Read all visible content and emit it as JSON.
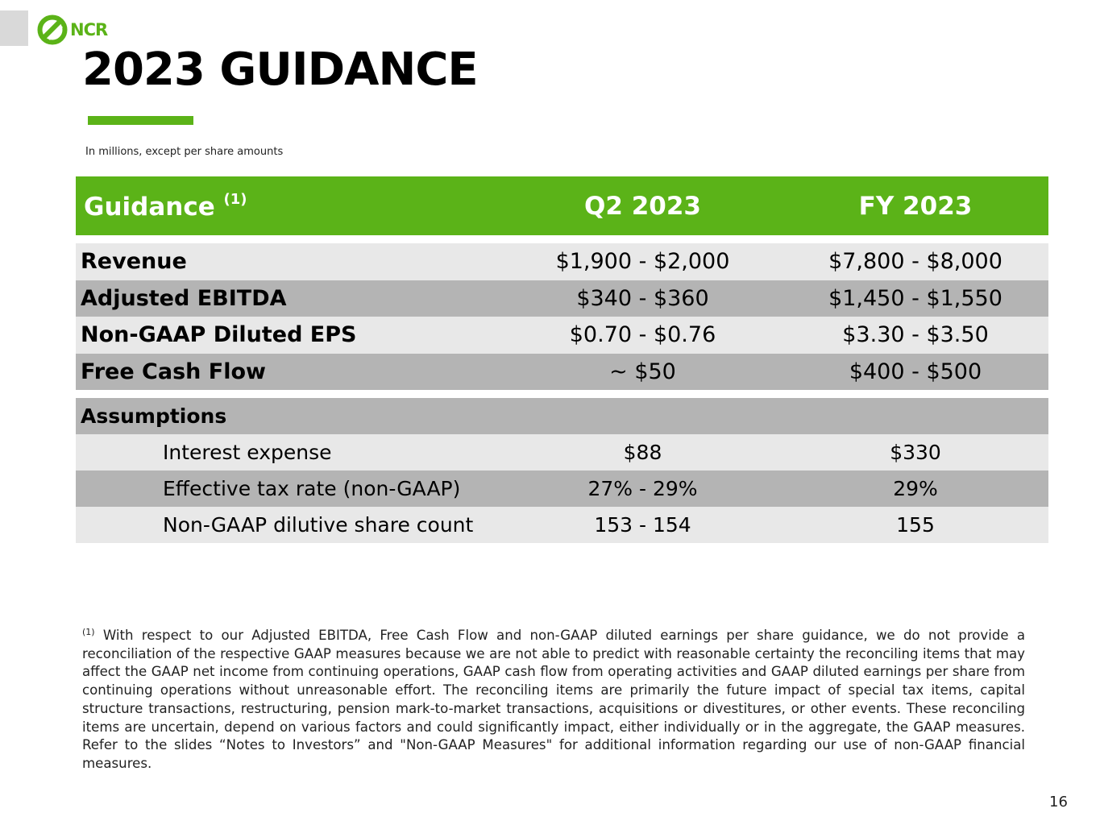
{
  "logo": {
    "text": "NCR",
    "color": "#5bb318"
  },
  "title": "2023 GUIDANCE",
  "units_note": "In millions, except per share amounts",
  "table_header": {
    "label": "Guidance",
    "footnote_marker": "(1)",
    "col_q2": "Q2 2023",
    "col_fy": "FY 2023"
  },
  "guidance_rows": [
    {
      "label": "Revenue",
      "q2": "$1,900 - $2,000",
      "fy": "$7,800 - $8,000"
    },
    {
      "label": "Adjusted EBITDA",
      "q2": "$340 - $360",
      "fy": "$1,450 - $1,550"
    },
    {
      "label": "Non-GAAP Diluted EPS",
      "q2": "$0.70 - $0.76",
      "fy": "$3.30 - $3.50"
    },
    {
      "label": "Free Cash Flow",
      "q2": "~ $50",
      "fy": "$400 - $500"
    }
  ],
  "assumptions": {
    "heading": "Assumptions",
    "rows": [
      {
        "label": "Interest expense",
        "q2": "$88",
        "fy": "$330"
      },
      {
        "label": "Effective tax rate (non-GAAP)",
        "q2": "27% - 29%",
        "fy": "29%"
      },
      {
        "label": "Non-GAAP dilutive share count",
        "q2": "153 - 154",
        "fy": "155"
      }
    ]
  },
  "footnote": {
    "marker": "(1)",
    "text": "With respect to our Adjusted EBITDA, Free Cash Flow and non-GAAP diluted earnings per share guidance, we do not provide a reconciliation of the respective GAAP measures because we are not able to predict with reasonable certainty the reconciling items that may affect the GAAP net income from continuing operations, GAAP cash flow from operating activities and GAAP diluted earnings per share from continuing operations without unreasonable effort. The reconciling items are primarily the future impact of special tax items, capital structure transactions, restructuring, pension mark-to-market transactions, acquisitions or divestitures, or other events. These reconciling items are uncertain, depend on various factors and could significantly impact, either individually or in the aggregate, the GAAP measures. Refer to the slides “Notes to Investors” and \"Non-GAAP Measures\" for additional information regarding our use of non-GAAP financial measures."
  },
  "page_number": "16",
  "colors": {
    "accent_green": "#5bb318",
    "row_light": "#e8e8e8",
    "row_dark": "#b4b4b4"
  }
}
